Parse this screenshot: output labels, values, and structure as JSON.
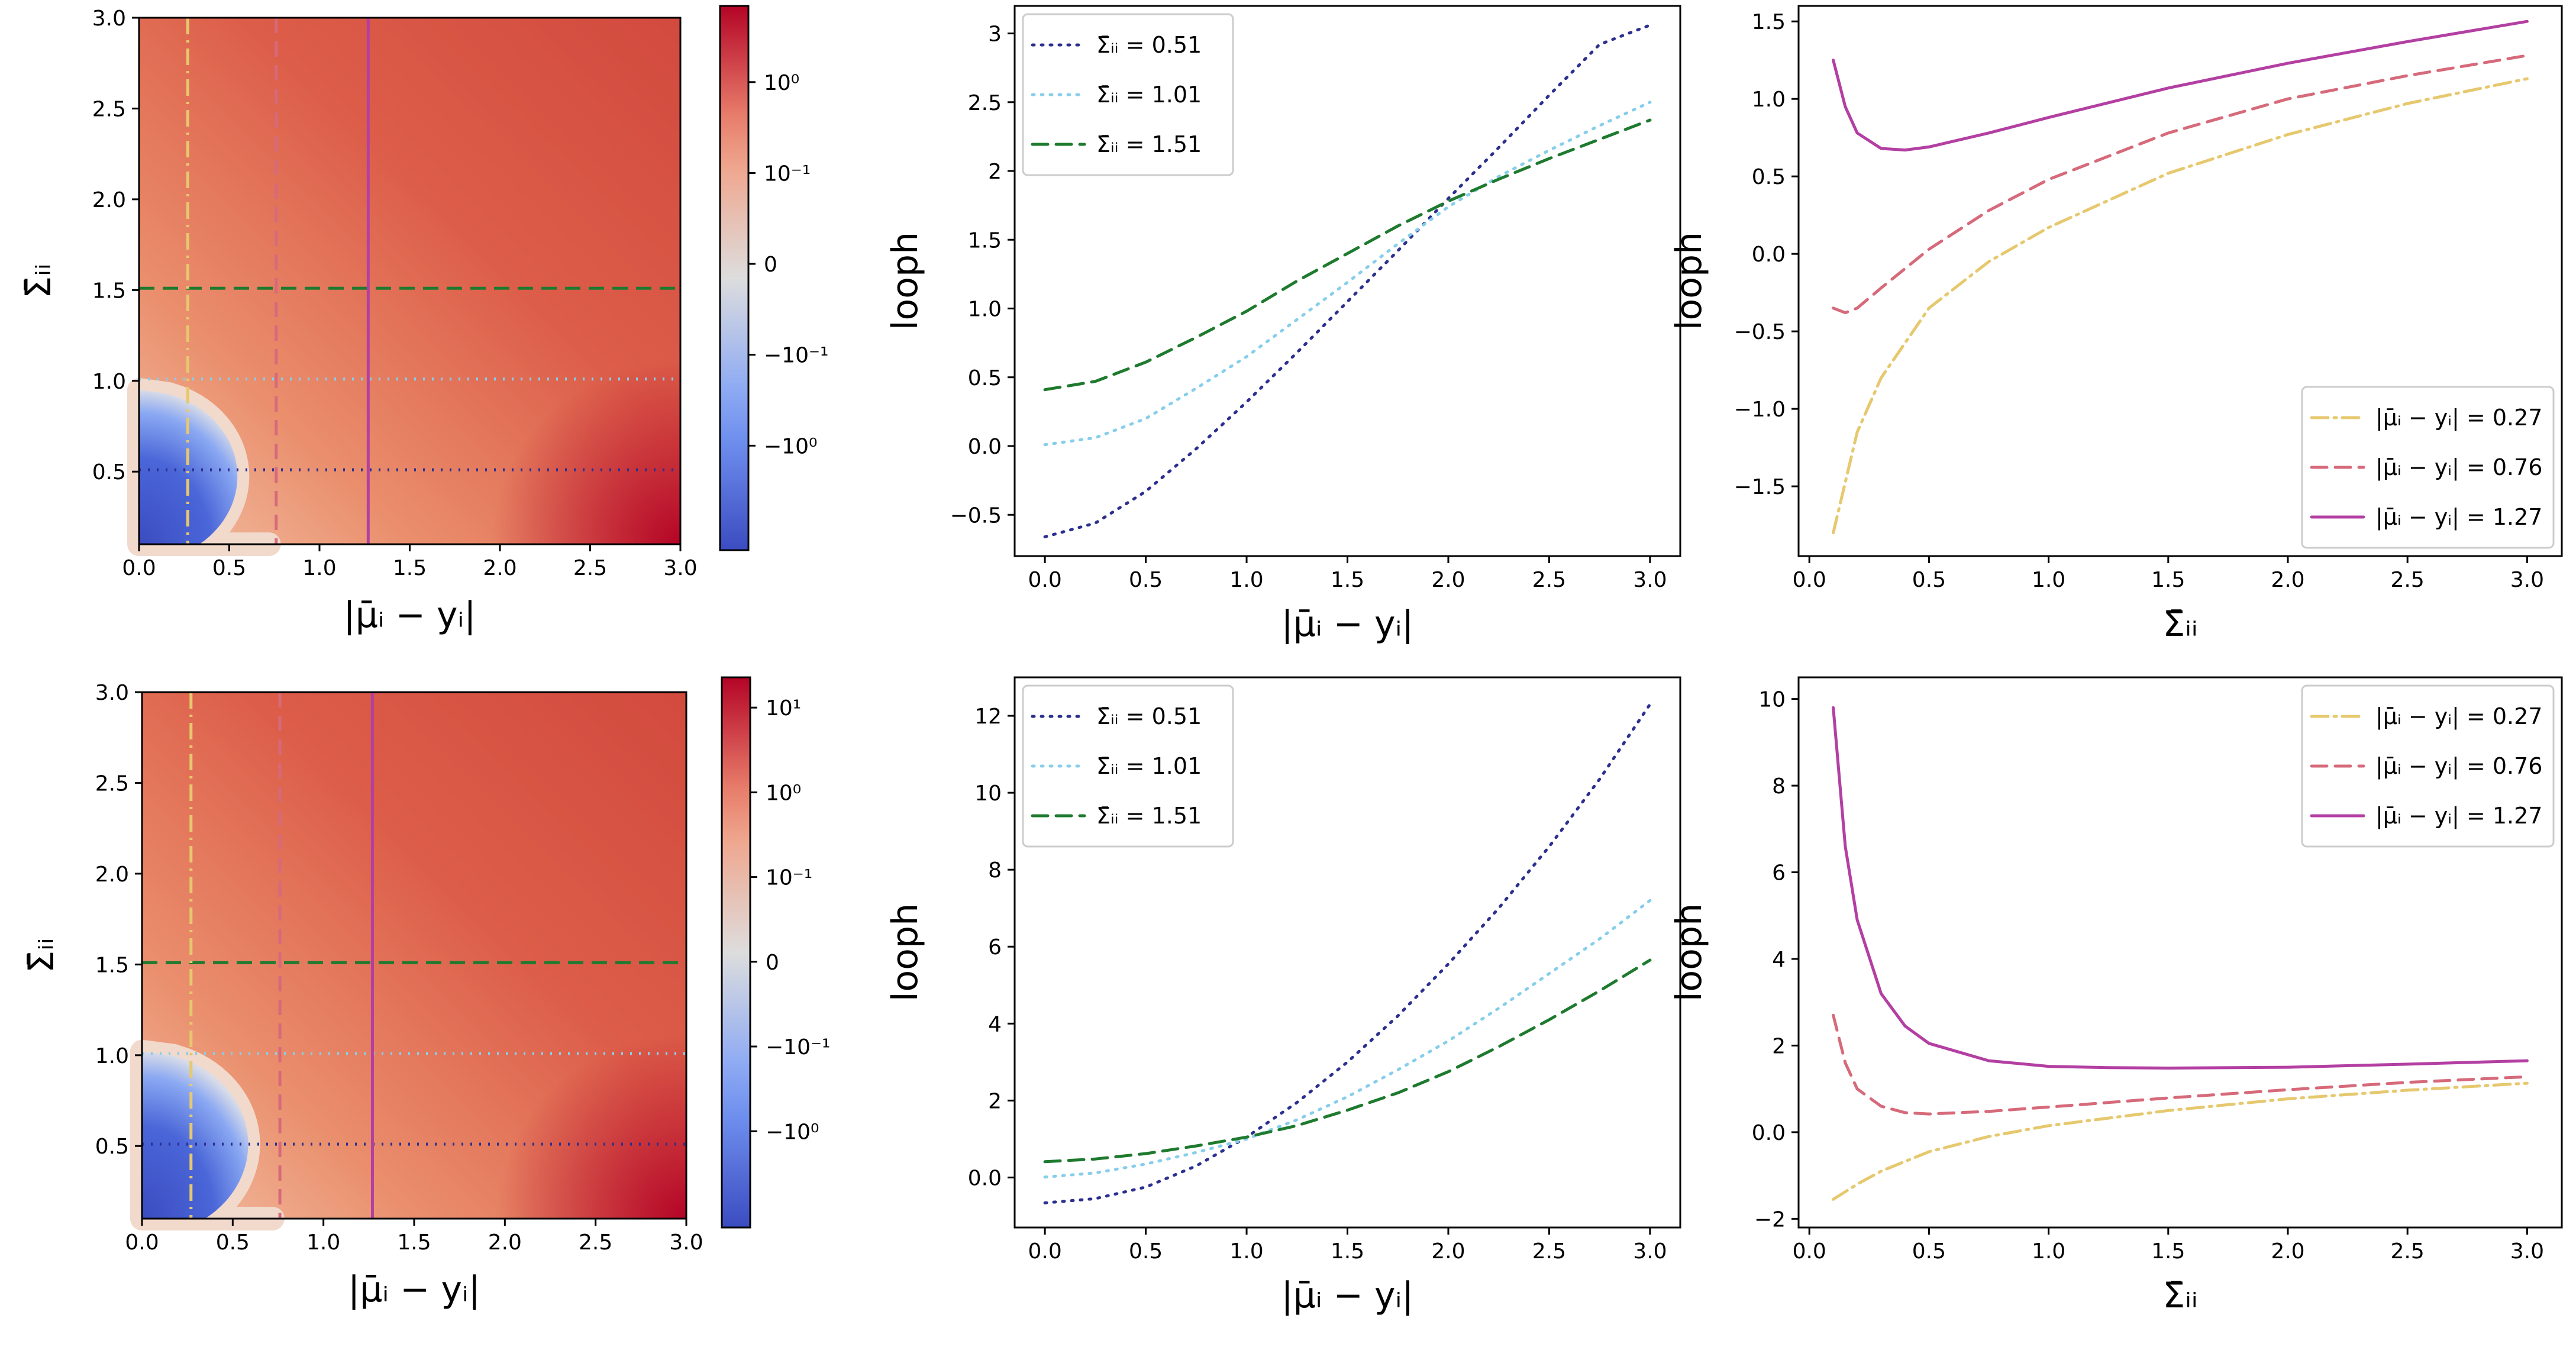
{
  "figure": {
    "rows": [
      {
        "row_name": "top",
        "heatmap": {
          "type": "heatmap",
          "xlabel": "|μ̄ᵢ − yᵢ|",
          "ylabel": "Σ̄ᵢᵢ",
          "xlim": [
            0.0,
            3.0
          ],
          "ylim": [
            0.1,
            3.0
          ],
          "xticks": [
            "0.0",
            "0.5",
            "1.0",
            "1.5",
            "2.0",
            "2.5",
            "3.0"
          ],
          "yticks": [
            "0.5",
            "1.0",
            "1.5",
            "2.0",
            "2.5",
            "3.0"
          ],
          "boundary_s0": 0.95,
          "colorbar": {
            "ticks": [
              "10⁰",
              "10⁻¹",
              "0",
              "−10⁻¹",
              "−10⁰"
            ]
          },
          "hlines": [
            {
              "y": 0.51,
              "color": "#2b2f8f",
              "style": "dotted"
            },
            {
              "y": 1.01,
              "color": "#87ceeb",
              "style": "dotted"
            },
            {
              "y": 1.51,
              "color": "#1e7a2e",
              "style": "dashed"
            }
          ],
          "vlines": [
            {
              "x": 0.27,
              "color": "#e6c86e",
              "style": "dashdot"
            },
            {
              "x": 0.76,
              "color": "#d66a7a",
              "style": "dashed"
            },
            {
              "x": 1.27,
              "color": "#b33fa2",
              "style": "solid"
            }
          ]
        },
        "line_vs_mu": {
          "type": "line",
          "xlabel": "|μ̄ᵢ − yᵢ|",
          "ylabel": "looph",
          "xlim": [
            -0.15,
            3.15
          ],
          "ylim": [
            -0.8,
            3.2
          ],
          "xticks": [
            0,
            0.5,
            1.0,
            1.5,
            2.0,
            2.5,
            3.0
          ],
          "yticks": [
            -0.5,
            0.0,
            0.5,
            1.0,
            1.5,
            2.0,
            2.5,
            3.0
          ],
          "legend_position": "upper-left",
          "series": [
            {
              "name": "Σ̄ᵢᵢ = 0.51",
              "color": "#2b2f8f",
              "style": "dotted",
              "x": [
                0,
                0.25,
                0.5,
                0.75,
                1.0,
                1.25,
                1.5,
                1.75,
                2.0,
                2.25,
                2.5,
                2.75,
                3.0
              ],
              "y": [
                -0.66,
                -0.56,
                -0.33,
                -0.02,
                0.32,
                0.68,
                1.05,
                1.42,
                1.8,
                2.17,
                2.55,
                2.92,
                3.06
              ]
            },
            {
              "name": "Σ̄ᵢᵢ = 1.01",
              "color": "#87ceeb",
              "style": "dotted",
              "x": [
                0,
                0.25,
                0.5,
                0.75,
                1.0,
                1.25,
                1.5,
                1.75,
                2.0,
                2.25,
                2.5,
                2.75,
                3.0
              ],
              "y": [
                0.01,
                0.06,
                0.2,
                0.42,
                0.65,
                0.92,
                1.19,
                1.47,
                1.74,
                1.96,
                2.15,
                2.33,
                2.5
              ]
            },
            {
              "name": "Σ̄ᵢᵢ = 1.51",
              "color": "#1e7a2e",
              "style": "dashed",
              "x": [
                0,
                0.25,
                0.5,
                0.75,
                1.0,
                1.25,
                1.5,
                1.75,
                2.0,
                2.25,
                2.5,
                2.75,
                3.0
              ],
              "y": [
                0.41,
                0.47,
                0.61,
                0.79,
                0.98,
                1.2,
                1.4,
                1.6,
                1.78,
                1.94,
                2.09,
                2.23,
                2.37
              ]
            }
          ]
        },
        "line_vs_sigma": {
          "type": "line",
          "xlabel": "Σ̄ᵢᵢ",
          "ylabel": "looph",
          "xlim": [
            -0.045,
            3.145
          ],
          "ylim": [
            -1.95,
            1.6
          ],
          "xticks": [
            0,
            0.5,
            1.0,
            1.5,
            2.0,
            2.5,
            3.0
          ],
          "yticks": [
            -1.5,
            -1.0,
            -0.5,
            0.0,
            0.5,
            1.0,
            1.5
          ],
          "legend_position": "lower-right",
          "series": [
            {
              "name": "|μ̄ᵢ − yᵢ| = 0.27",
              "color": "#e6c86e",
              "style": "dashdot",
              "x": [
                0.1,
                0.2,
                0.3,
                0.5,
                0.75,
                1.0,
                1.5,
                2.0,
                2.5,
                3.0
              ],
              "y": [
                -1.8,
                -1.15,
                -0.8,
                -0.35,
                -0.05,
                0.17,
                0.52,
                0.77,
                0.97,
                1.13
              ]
            },
            {
              "name": "|μ̄ᵢ − yᵢ| = 0.76",
              "color": "#d66a7a",
              "style": "dashed",
              "x": [
                0.1,
                0.15,
                0.2,
                0.3,
                0.5,
                0.75,
                1.0,
                1.5,
                2.0,
                2.5,
                3.0
              ],
              "y": [
                -0.35,
                -0.38,
                -0.35,
                -0.22,
                0.03,
                0.28,
                0.48,
                0.78,
                1.0,
                1.15,
                1.28
              ]
            },
            {
              "name": "|μ̄ᵢ − yᵢ| = 1.27",
              "color": "#b33fa2",
              "style": "solid",
              "x": [
                0.1,
                0.15,
                0.2,
                0.3,
                0.4,
                0.5,
                0.75,
                1.0,
                1.5,
                2.0,
                2.5,
                3.0
              ],
              "y": [
                1.25,
                0.95,
                0.78,
                0.68,
                0.67,
                0.69,
                0.78,
                0.88,
                1.07,
                1.23,
                1.37,
                1.5
              ]
            }
          ]
        }
      },
      {
        "row_name": "bottom",
        "heatmap": {
          "type": "heatmap",
          "xlabel": "|μ̄ᵢ − yᵢ|",
          "ylabel": "Σ̄ᵢᵢ",
          "xlim": [
            0.0,
            3.0
          ],
          "ylim": [
            0.1,
            3.0
          ],
          "xticks": [
            "0.0",
            "0.5",
            "1.0",
            "1.5",
            "2.0",
            "2.5",
            "3.0"
          ],
          "yticks": [
            "0.5",
            "1.0",
            "1.5",
            "2.0",
            "2.5",
            "3.0"
          ],
          "boundary_s0": 1.02,
          "colorbar": {
            "ticks": [
              "10¹",
              "10⁰",
              "10⁻¹",
              "0",
              "−10⁻¹",
              "−10⁰"
            ]
          },
          "hlines": [
            {
              "y": 0.51,
              "color": "#2b2f8f",
              "style": "dotted"
            },
            {
              "y": 1.01,
              "color": "#87ceeb",
              "style": "dotted"
            },
            {
              "y": 1.51,
              "color": "#1e7a2e",
              "style": "dashed"
            }
          ],
          "vlines": [
            {
              "x": 0.27,
              "color": "#e6c86e",
              "style": "dashdot"
            },
            {
              "x": 0.76,
              "color": "#d66a7a",
              "style": "dashed"
            },
            {
              "x": 1.27,
              "color": "#b33fa2",
              "style": "solid"
            }
          ]
        },
        "line_vs_mu": {
          "type": "line",
          "xlabel": "|μ̄ᵢ − yᵢ|",
          "ylabel": "looph",
          "xlim": [
            -0.15,
            3.15
          ],
          "ylim": [
            -1.3,
            13.0
          ],
          "xticks": [
            0,
            0.5,
            1.0,
            1.5,
            2.0,
            2.5,
            3.0
          ],
          "yticks": [
            0,
            2,
            4,
            6,
            8,
            10,
            12
          ],
          "legend_position": "upper-left",
          "series": [
            {
              "name": "Σ̄ᵢᵢ = 0.51",
              "color": "#2b2f8f",
              "style": "dotted",
              "x": [
                0,
                0.25,
                0.5,
                0.75,
                1.0,
                1.25,
                1.5,
                1.75,
                2.0,
                2.25,
                2.5,
                2.75,
                3.0
              ],
              "y": [
                -0.66,
                -0.55,
                -0.25,
                0.3,
                1.05,
                1.95,
                3.0,
                4.2,
                5.55,
                7.0,
                8.6,
                10.35,
                12.3
              ]
            },
            {
              "name": "Σ̄ᵢᵢ = 1.01",
              "color": "#87ceeb",
              "style": "dotted",
              "x": [
                0,
                0.25,
                0.5,
                0.75,
                1.0,
                1.25,
                1.5,
                1.75,
                2.0,
                2.25,
                2.5,
                2.75,
                3.0
              ],
              "y": [
                0.01,
                0.12,
                0.35,
                0.65,
                1.0,
                1.5,
                2.1,
                2.8,
                3.55,
                4.4,
                5.3,
                6.2,
                7.2
              ]
            },
            {
              "name": "Σ̄ᵢᵢ = 1.51",
              "color": "#1e7a2e",
              "style": "dashed",
              "x": [
                0,
                0.25,
                0.5,
                0.75,
                1.0,
                1.25,
                1.5,
                1.75,
                2.0,
                2.25,
                2.5,
                2.75,
                3.0
              ],
              "y": [
                0.41,
                0.48,
                0.62,
                0.82,
                1.05,
                1.35,
                1.75,
                2.2,
                2.75,
                3.4,
                4.1,
                4.85,
                5.65
              ]
            }
          ]
        },
        "line_vs_sigma": {
          "type": "line",
          "xlabel": "Σ̄ᵢᵢ",
          "ylabel": "looph",
          "xlim": [
            -0.045,
            3.145
          ],
          "ylim": [
            -2.2,
            10.5
          ],
          "xticks": [
            0,
            0.5,
            1.0,
            1.5,
            2.0,
            2.5,
            3.0
          ],
          "yticks": [
            -2,
            0,
            2,
            4,
            6,
            8,
            10
          ],
          "legend_position": "upper-right",
          "series": [
            {
              "name": "|μ̄ᵢ − yᵢ| = 0.27",
              "color": "#e6c86e",
              "style": "dashdot",
              "x": [
                0.1,
                0.2,
                0.3,
                0.5,
                0.75,
                1.0,
                1.5,
                2.0,
                2.5,
                3.0
              ],
              "y": [
                -1.55,
                -1.2,
                -0.9,
                -0.45,
                -0.1,
                0.15,
                0.5,
                0.77,
                0.97,
                1.13
              ]
            },
            {
              "name": "|μ̄ᵢ − yᵢ| = 0.76",
              "color": "#d66a7a",
              "style": "dashed",
              "x": [
                0.1,
                0.15,
                0.2,
                0.3,
                0.4,
                0.5,
                0.75,
                1.0,
                1.5,
                2.0,
                2.5,
                3.0
              ],
              "y": [
                2.7,
                1.6,
                1.0,
                0.6,
                0.45,
                0.42,
                0.48,
                0.58,
                0.79,
                0.98,
                1.15,
                1.28
              ]
            },
            {
              "name": "|μ̄ᵢ − yᵢ| = 1.27",
              "color": "#b33fa2",
              "style": "solid",
              "x": [
                0.1,
                0.15,
                0.2,
                0.3,
                0.4,
                0.5,
                0.75,
                1.0,
                1.25,
                1.5,
                2.0,
                2.5,
                3.0
              ],
              "y": [
                9.8,
                6.6,
                4.9,
                3.2,
                2.45,
                2.05,
                1.65,
                1.52,
                1.49,
                1.48,
                1.5,
                1.57,
                1.65
              ]
            }
          ]
        }
      }
    ]
  }
}
